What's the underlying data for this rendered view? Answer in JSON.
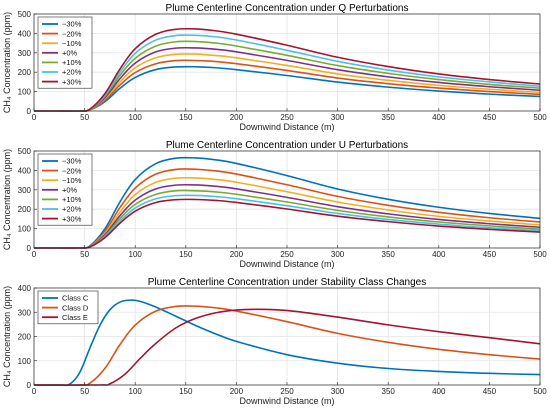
{
  "chart_data": [
    {
      "type": "line",
      "title": "Plume Centerline Concentration under Q Perturbations",
      "xlabel": "Downwind Distance (m)",
      "ylabel": "CH₄ Concentration (ppm)",
      "xlim": [
        0,
        500
      ],
      "ylim": [
        0,
        500
      ],
      "xticks": [
        0,
        50,
        100,
        150,
        200,
        250,
        300,
        350,
        400,
        450,
        500
      ],
      "yticks": [
        0,
        100,
        200,
        300,
        400,
        500
      ],
      "grid": true,
      "legend_position": "top-left",
      "x": [
        0,
        25,
        45,
        55,
        70,
        85,
        100,
        120,
        140,
        160,
        180,
        200,
        250,
        300,
        350,
        400,
        450,
        500
      ],
      "series": [
        {
          "name": "−30%",
          "color": "#0072BD",
          "values": [
            0,
            0,
            0,
            5,
            48,
            117,
            173,
            213,
            227,
            228,
            223,
            213,
            183,
            149,
            123,
            103,
            87,
            75
          ]
        },
        {
          "name": "−20%",
          "color": "#D95319",
          "values": [
            0,
            0,
            0,
            5,
            55,
            134,
            198,
            243,
            260,
            260,
            255,
            244,
            209,
            170,
            141,
            118,
            100,
            86
          ]
        },
        {
          "name": "−10%",
          "color": "#EDB120",
          "values": [
            0,
            0,
            0,
            6,
            62,
            150,
            223,
            274,
            292,
            293,
            286,
            274,
            235,
            191,
            158,
            132,
            112,
            96
          ]
        },
        {
          "name": "+0%",
          "color": "#7E2F8E",
          "values": [
            0,
            0,
            0,
            7,
            68,
            167,
            247,
            304,
            324,
            325,
            318,
            305,
            261,
            213,
            176,
            147,
            125,
            107
          ]
        },
        {
          "name": "+10%",
          "color": "#77AC30",
          "values": [
            0,
            0,
            0,
            7,
            75,
            184,
            272,
            334,
            357,
            358,
            350,
            335,
            287,
            234,
            194,
            162,
            137,
            118
          ]
        },
        {
          "name": "+20%",
          "color": "#4DBEEE",
          "values": [
            0,
            0,
            0,
            8,
            82,
            200,
            297,
            365,
            389,
            390,
            382,
            366,
            313,
            256,
            211,
            176,
            150,
            128
          ]
        },
        {
          "name": "+30%",
          "color": "#A2142F",
          "values": [
            0,
            0,
            0,
            9,
            89,
            217,
            321,
            395,
            421,
            423,
            413,
            396,
            339,
            277,
            229,
            191,
            162,
            139
          ]
        }
      ]
    },
    {
      "type": "line",
      "title": "Plume Centerline Concentration under U Perturbations",
      "xlabel": "Downwind Distance (m)",
      "ylabel": "CH₄ Concentration (ppm)",
      "xlim": [
        0,
        500
      ],
      "ylim": [
        0,
        500
      ],
      "xticks": [
        0,
        50,
        100,
        150,
        200,
        250,
        300,
        350,
        400,
        450,
        500
      ],
      "yticks": [
        0,
        100,
        200,
        300,
        400,
        500
      ],
      "grid": true,
      "legend_position": "top-left",
      "x": [
        0,
        25,
        45,
        55,
        70,
        85,
        100,
        120,
        140,
        160,
        180,
        200,
        250,
        300,
        350,
        400,
        450,
        500
      ],
      "series": [
        {
          "name": "−30%",
          "color": "#0072BD",
          "values": [
            0,
            0,
            0,
            10,
            98,
            238,
            353,
            434,
            463,
            464,
            454,
            436,
            373,
            304,
            251,
            210,
            178,
            153
          ]
        },
        {
          "name": "−20%",
          "color": "#D95319",
          "values": [
            0,
            0,
            0,
            8,
            85,
            209,
            309,
            380,
            405,
            406,
            397,
            381,
            326,
            266,
            220,
            184,
            156,
            134
          ]
        },
        {
          "name": "−10%",
          "color": "#EDB120",
          "values": [
            0,
            0,
            0,
            8,
            76,
            185,
            275,
            338,
            360,
            361,
            353,
            339,
            290,
            237,
            196,
            163,
            139,
            119
          ]
        },
        {
          "name": "+0%",
          "color": "#7E2F8E",
          "values": [
            0,
            0,
            0,
            7,
            68,
            167,
            247,
            304,
            324,
            325,
            318,
            305,
            261,
            213,
            176,
            147,
            125,
            107
          ]
        },
        {
          "name": "+10%",
          "color": "#77AC30",
          "values": [
            0,
            0,
            0,
            6,
            62,
            152,
            225,
            276,
            295,
            295,
            289,
            277,
            237,
            194,
            160,
            134,
            114,
            97
          ]
        },
        {
          "name": "+20%",
          "color": "#4DBEEE",
          "values": [
            0,
            0,
            0,
            6,
            57,
            139,
            206,
            253,
            270,
            271,
            265,
            254,
            218,
            178,
            147,
            123,
            104,
            89
          ]
        },
        {
          "name": "+30%",
          "color": "#A2142F",
          "values": [
            0,
            0,
            0,
            5,
            53,
            128,
            190,
            234,
            249,
            250,
            245,
            235,
            201,
            164,
            136,
            113,
            96,
            82
          ]
        }
      ]
    },
    {
      "type": "line",
      "title": "Plume Centerline Concentration under Stability Class Changes",
      "xlabel": "Downwind Distance (m)",
      "ylabel": "CH₄ Concentration (ppm)",
      "xlim": [
        0,
        500
      ],
      "ylim": [
        0,
        400
      ],
      "xticks": [
        0,
        50,
        100,
        150,
        200,
        250,
        300,
        350,
        400,
        450,
        500
      ],
      "yticks": [
        0,
        100,
        200,
        300,
        400
      ],
      "grid": true,
      "legend_position": "top-left",
      "series": [
        {
          "name": "Class C",
          "color": "#0072BD",
          "x": [
            0,
            25,
            35,
            45,
            55,
            65,
            75,
            85,
            95,
            105,
            120,
            140,
            160,
            180,
            200,
            250,
            300,
            350,
            400,
            450,
            500
          ],
          "values": [
            0,
            0,
            3,
            50,
            150,
            245,
            310,
            342,
            350,
            345,
            322,
            284,
            245,
            210,
            180,
            125,
            90,
            68,
            56,
            48,
            43
          ]
        },
        {
          "name": "Class D",
          "color": "#D95319",
          "x": [
            0,
            45,
            55,
            70,
            85,
            100,
            120,
            140,
            160,
            180,
            200,
            250,
            300,
            350,
            400,
            450,
            500
          ],
          "values": [
            0,
            0,
            7,
            68,
            167,
            247,
            304,
            324,
            325,
            318,
            305,
            261,
            213,
            176,
            147,
            125,
            107
          ]
        },
        {
          "name": "Class E",
          "color": "#A2142F",
          "x": [
            0,
            65,
            75,
            90,
            105,
            120,
            140,
            160,
            180,
            200,
            220,
            240,
            260,
            300,
            350,
            400,
            450,
            500
          ],
          "values": [
            0,
            0,
            5,
            45,
            110,
            170,
            235,
            275,
            298,
            309,
            312,
            310,
            303,
            280,
            248,
            220,
            195,
            170
          ]
        }
      ]
    }
  ]
}
